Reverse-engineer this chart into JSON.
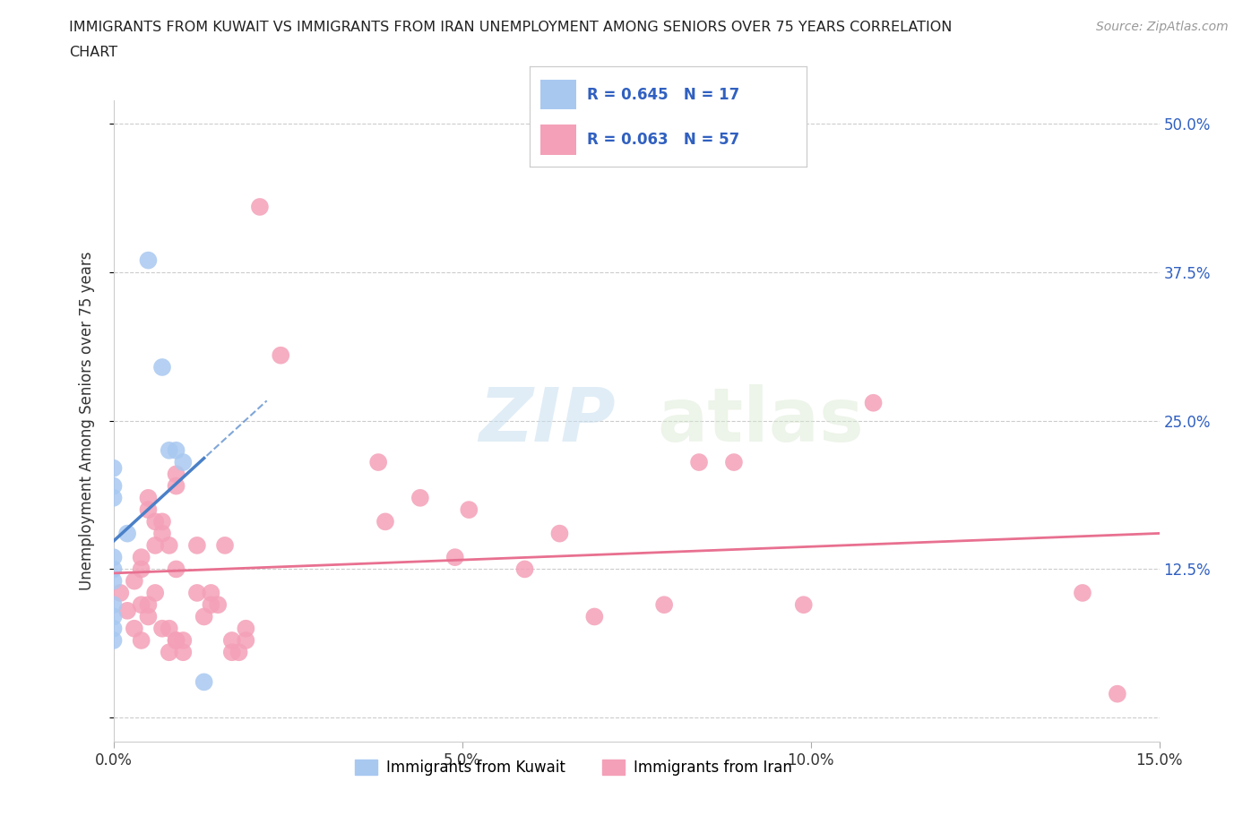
{
  "title_line1": "IMMIGRANTS FROM KUWAIT VS IMMIGRANTS FROM IRAN UNEMPLOYMENT AMONG SENIORS OVER 75 YEARS CORRELATION",
  "title_line2": "CHART",
  "source": "Source: ZipAtlas.com",
  "ylabel": "Unemployment Among Seniors over 75 years",
  "xlim": [
    0.0,
    0.15
  ],
  "ylim": [
    -0.02,
    0.52
  ],
  "xticks": [
    0.0,
    0.05,
    0.1,
    0.15
  ],
  "xtick_labels": [
    "0.0%",
    "5.0%",
    "10.0%",
    "15.0%"
  ],
  "ytick_positions": [
    0.0,
    0.125,
    0.25,
    0.375,
    0.5
  ],
  "ytick_labels": [
    "",
    "12.5%",
    "25.0%",
    "37.5%",
    "50.0%"
  ],
  "kuwait_color": "#a8c8f0",
  "iran_color": "#f4a0b8",
  "kuwait_line_color": "#4a80c8",
  "iran_line_color": "#e87090",
  "kuwait_R": 0.645,
  "kuwait_N": 17,
  "iran_R": 0.063,
  "iran_N": 57,
  "legend_R_color": "#3060c0",
  "watermark_zip": "ZIP",
  "watermark_atlas": "atlas",
  "kuwait_points": [
    [
      0.0,
      0.115
    ],
    [
      0.0,
      0.095
    ],
    [
      0.0,
      0.085
    ],
    [
      0.0,
      0.195
    ],
    [
      0.0,
      0.21
    ],
    [
      0.0,
      0.185
    ],
    [
      0.0,
      0.075
    ],
    [
      0.0,
      0.125
    ],
    [
      0.0,
      0.135
    ],
    [
      0.0,
      0.065
    ],
    [
      0.005,
      0.385
    ],
    [
      0.007,
      0.295
    ],
    [
      0.008,
      0.225
    ],
    [
      0.009,
      0.225
    ],
    [
      0.01,
      0.215
    ],
    [
      0.013,
      0.03
    ],
    [
      0.002,
      0.155
    ]
  ],
  "iran_points": [
    [
      0.001,
      0.105
    ],
    [
      0.002,
      0.09
    ],
    [
      0.003,
      0.115
    ],
    [
      0.003,
      0.075
    ],
    [
      0.004,
      0.095
    ],
    [
      0.004,
      0.065
    ],
    [
      0.004,
      0.125
    ],
    [
      0.004,
      0.135
    ],
    [
      0.005,
      0.085
    ],
    [
      0.005,
      0.095
    ],
    [
      0.005,
      0.175
    ],
    [
      0.005,
      0.185
    ],
    [
      0.006,
      0.105
    ],
    [
      0.006,
      0.145
    ],
    [
      0.006,
      0.165
    ],
    [
      0.007,
      0.155
    ],
    [
      0.007,
      0.165
    ],
    [
      0.007,
      0.075
    ],
    [
      0.008,
      0.055
    ],
    [
      0.008,
      0.075
    ],
    [
      0.008,
      0.145
    ],
    [
      0.009,
      0.065
    ],
    [
      0.009,
      0.065
    ],
    [
      0.009,
      0.125
    ],
    [
      0.009,
      0.195
    ],
    [
      0.009,
      0.205
    ],
    [
      0.01,
      0.065
    ],
    [
      0.01,
      0.055
    ],
    [
      0.012,
      0.105
    ],
    [
      0.012,
      0.145
    ],
    [
      0.013,
      0.085
    ],
    [
      0.014,
      0.095
    ],
    [
      0.014,
      0.105
    ],
    [
      0.015,
      0.095
    ],
    [
      0.016,
      0.145
    ],
    [
      0.017,
      0.055
    ],
    [
      0.017,
      0.065
    ],
    [
      0.018,
      0.055
    ],
    [
      0.019,
      0.065
    ],
    [
      0.019,
      0.075
    ],
    [
      0.021,
      0.43
    ],
    [
      0.024,
      0.305
    ],
    [
      0.038,
      0.215
    ],
    [
      0.039,
      0.165
    ],
    [
      0.044,
      0.185
    ],
    [
      0.049,
      0.135
    ],
    [
      0.051,
      0.175
    ],
    [
      0.059,
      0.125
    ],
    [
      0.064,
      0.155
    ],
    [
      0.069,
      0.085
    ],
    [
      0.079,
      0.095
    ],
    [
      0.084,
      0.215
    ],
    [
      0.089,
      0.215
    ],
    [
      0.099,
      0.095
    ],
    [
      0.109,
      0.265
    ],
    [
      0.139,
      0.105
    ],
    [
      0.144,
      0.02
    ]
  ]
}
